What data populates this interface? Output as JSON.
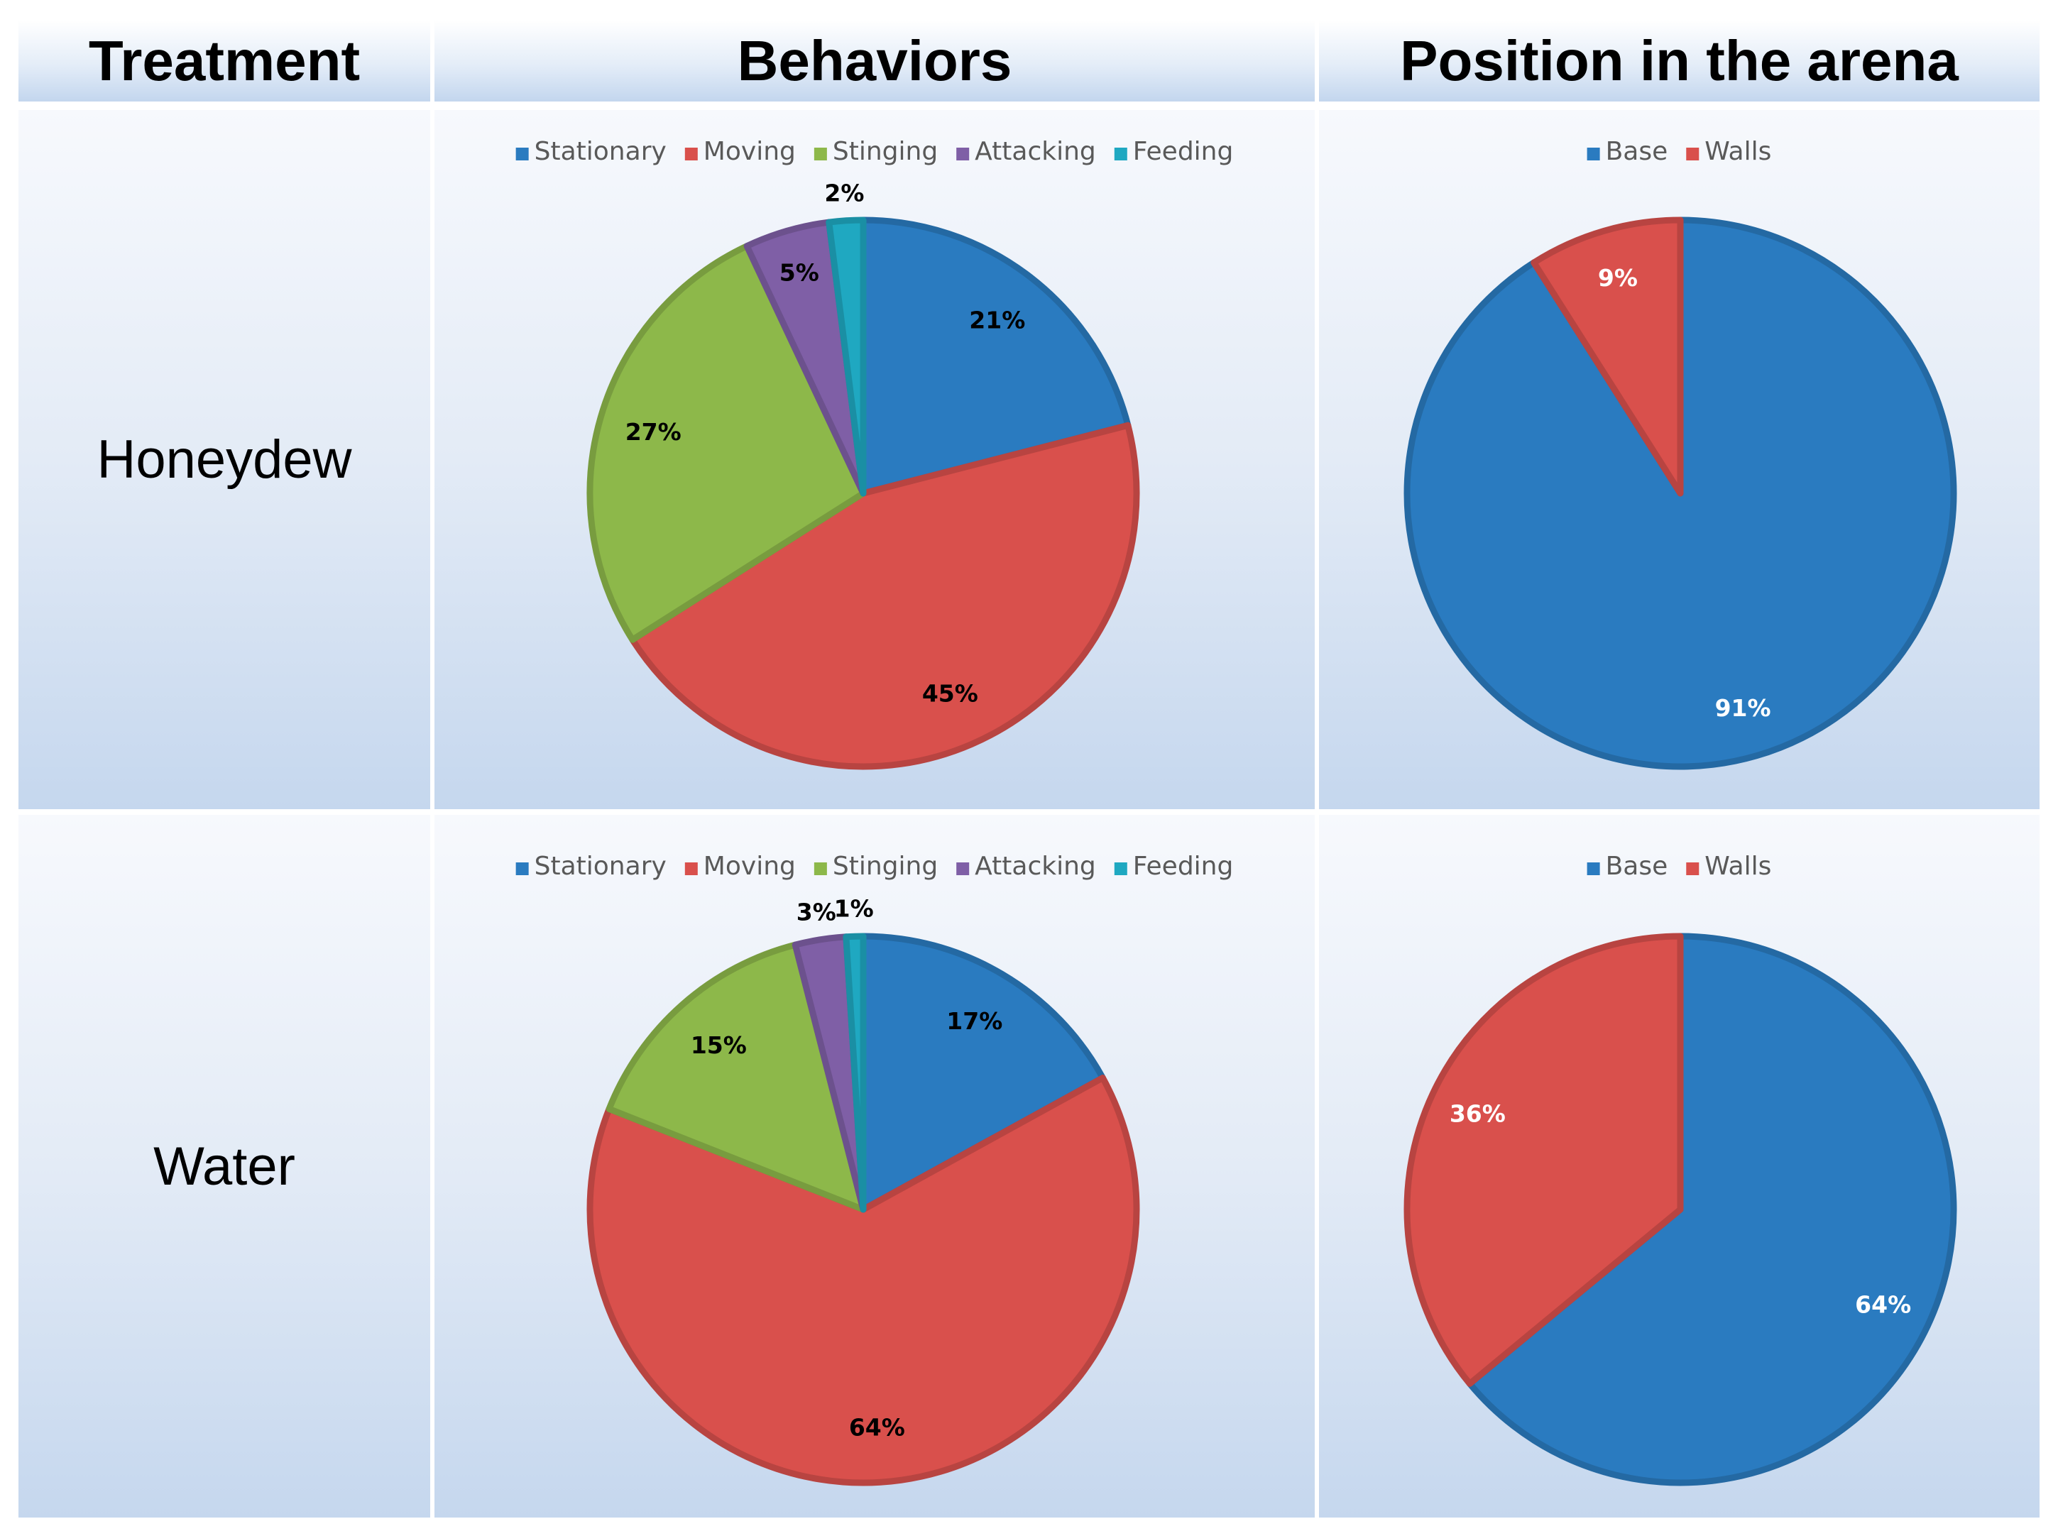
{
  "headers": {
    "treatment": "Treatment",
    "behaviors": "Behaviors",
    "position": "Position in the arena"
  },
  "colors": {
    "stationary": "#2a7bc0",
    "moving": "#d9504c",
    "stinging": "#8db84a",
    "attacking": "#7f5fa6",
    "feeding": "#1fa8c1",
    "base": "#2a7bc0",
    "walls": "#d9504c"
  },
  "rows": [
    {
      "treatment": "Honeydew"
    },
    {
      "treatment": "Water"
    }
  ],
  "chart_data": [
    {
      "type": "pie",
      "title": "Behaviors - Honeydew",
      "categories": [
        "Stationary",
        "Moving",
        "Stinging",
        "Attacking",
        "Feeding"
      ],
      "values": [
        21,
        45,
        27,
        5,
        2
      ],
      "data_labels": [
        "21%",
        "45%",
        "27%",
        "5%",
        "2%"
      ],
      "legend_position": "top"
    },
    {
      "type": "pie",
      "title": "Position in the arena - Honeydew",
      "categories": [
        "Base",
        "Walls"
      ],
      "values": [
        91,
        9
      ],
      "data_labels": [
        "91%",
        "9%"
      ],
      "legend_position": "top"
    },
    {
      "type": "pie",
      "title": "Behaviors - Water",
      "categories": [
        "Stationary",
        "Moving",
        "Stinging",
        "Attacking",
        "Feeding"
      ],
      "values": [
        17,
        64,
        15,
        3,
        1
      ],
      "data_labels": [
        "17%",
        "64%",
        "15%",
        "3%",
        "1%"
      ],
      "legend_position": "top"
    },
    {
      "type": "pie",
      "title": "Position in the arena - Water",
      "categories": [
        "Base",
        "Walls"
      ],
      "values": [
        64,
        36
      ],
      "data_labels": [
        "64%",
        "36%"
      ],
      "legend_position": "top"
    }
  ]
}
